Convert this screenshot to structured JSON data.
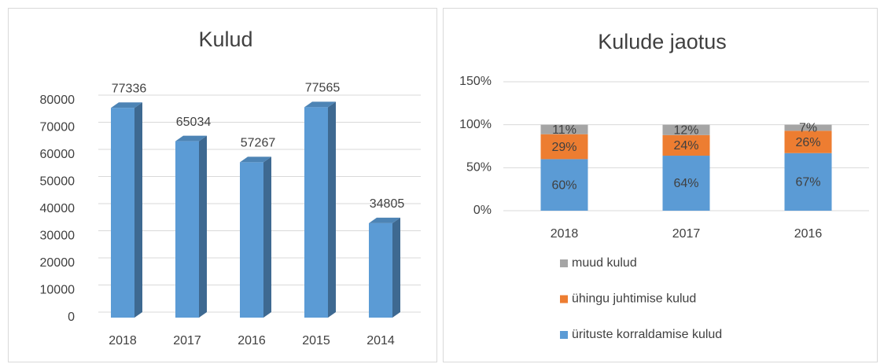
{
  "chart_data": [
    {
      "type": "bar3d",
      "title": "Kulud",
      "categories": [
        "2018",
        "2017",
        "2016",
        "2015",
        "2014"
      ],
      "values": [
        77336,
        65034,
        57267,
        77565,
        34805
      ],
      "color": "#5b9bd5",
      "ylim": [
        0,
        80000
      ],
      "yticks": [
        0,
        10000,
        20000,
        30000,
        40000,
        50000,
        60000,
        70000,
        80000
      ],
      "grid": true
    },
    {
      "type": "stacked_bar",
      "title": "Kulude jaotus",
      "categories": [
        "2018",
        "2017",
        "2016"
      ],
      "series": [
        {
          "name": "ürituste korraldamise kulud",
          "color": "#5b9bd5",
          "values": [
            60,
            64,
            67
          ],
          "value_labels": [
            "60%",
            "64%",
            "67%"
          ]
        },
        {
          "name": "ühingu juhtimise kulud",
          "color": "#ed7d31",
          "values": [
            29,
            24,
            26
          ],
          "value_labels": [
            "29%",
            "24%",
            "26%"
          ]
        },
        {
          "name": "muud kulud",
          "color": "#a5a5a5",
          "values": [
            11,
            12,
            7
          ],
          "value_labels": [
            "11%",
            "12%",
            "7%"
          ]
        }
      ],
      "ylim": [
        0,
        150
      ],
      "yticks": [
        {
          "value": 0,
          "label": "0%"
        },
        {
          "value": 50,
          "label": "50%"
        },
        {
          "value": 100,
          "label": "100%"
        },
        {
          "value": 150,
          "label": "150%"
        }
      ],
      "grid": true,
      "legend": "bottom"
    }
  ]
}
